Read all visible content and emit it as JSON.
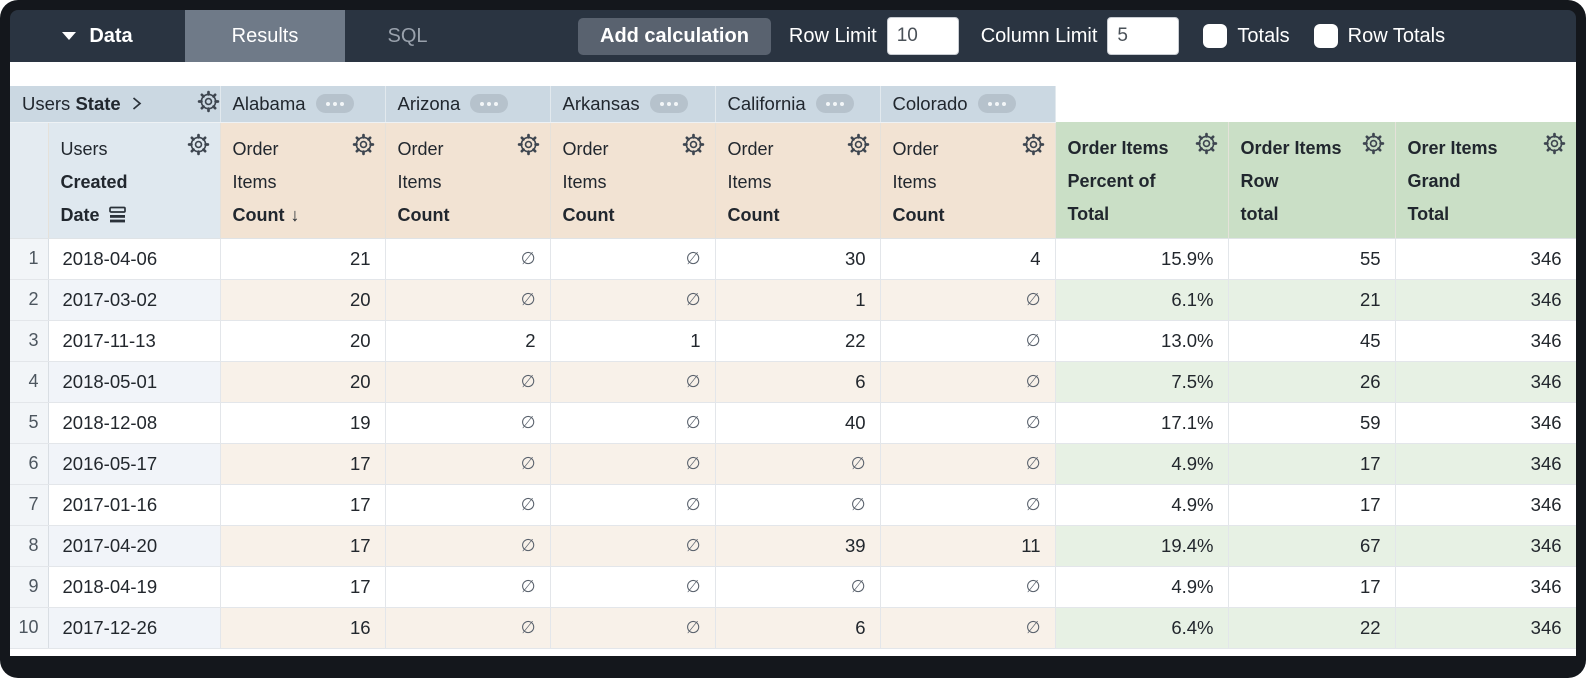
{
  "topbar": {
    "data_label": "Data",
    "results_label": "Results",
    "sql_label": "SQL",
    "add_calculation_label": "Add calculation",
    "row_limit_label": "Row Limit",
    "row_limit_value": "10",
    "column_limit_label": "Column Limit",
    "column_limit_value": "5",
    "totals_label": "Totals",
    "row_totals_label": "Row Totals"
  },
  "colors": {
    "topbar": "#2a3441",
    "state_header": "#cbd8e2",
    "dimension_header": "#dfe8ef",
    "measure_header": "#f2e3d3",
    "calc_header": "#cadfc6"
  },
  "pivot": {
    "dimension_regular": "Users",
    "dimension_bold": "State",
    "states": [
      "Alabama",
      "Arizona",
      "Arkansas",
      "California",
      "Colorado"
    ]
  },
  "row_dimension": {
    "line1": "Users",
    "line2": "Created",
    "line3": "Date"
  },
  "measure_columns": [
    {
      "lines": [
        "Order",
        "Items",
        "Count"
      ],
      "sorted": true,
      "sort_arrow": "↓"
    },
    {
      "lines": [
        "Order",
        "Items",
        "Count"
      ],
      "sorted": false,
      "sort_arrow": "↓"
    },
    {
      "lines": [
        "Order",
        "Items",
        "Count"
      ],
      "sorted": false,
      "sort_arrow": "↓"
    },
    {
      "lines": [
        "Order",
        "Items",
        "Count"
      ],
      "sorted": false,
      "sort_arrow": "↓"
    },
    {
      "lines": [
        "Order",
        "Items",
        "Count"
      ],
      "sorted": false,
      "sort_arrow": "↓"
    }
  ],
  "calc_columns": [
    {
      "lines": [
        "Order Items",
        "Percent of",
        "Total"
      ]
    },
    {
      "lines": [
        "Order Items",
        "Row",
        "total"
      ]
    },
    {
      "lines": [
        "Orer Items",
        "Grand",
        "Total"
      ]
    }
  ],
  "null_symbol": "∅",
  "rows": [
    {
      "n": "1",
      "date": "2018-04-06",
      "values": [
        "21",
        "∅",
        "∅",
        "30",
        "4"
      ],
      "percent": "15.9%",
      "row_total": "55",
      "grand_total": "346"
    },
    {
      "n": "2",
      "date": "2017-03-02",
      "values": [
        "20",
        "∅",
        "∅",
        "1",
        "∅"
      ],
      "percent": "6.1%",
      "row_total": "21",
      "grand_total": "346"
    },
    {
      "n": "3",
      "date": "2017-11-13",
      "values": [
        "20",
        "2",
        "1",
        "22",
        "∅"
      ],
      "percent": "13.0%",
      "row_total": "45",
      "grand_total": "346"
    },
    {
      "n": "4",
      "date": "2018-05-01",
      "values": [
        "20",
        "∅",
        "∅",
        "6",
        "∅"
      ],
      "percent": "7.5%",
      "row_total": "26",
      "grand_total": "346"
    },
    {
      "n": "5",
      "date": "2018-12-08",
      "values": [
        "19",
        "∅",
        "∅",
        "40",
        "∅"
      ],
      "percent": "17.1%",
      "row_total": "59",
      "grand_total": "346"
    },
    {
      "n": "6",
      "date": "2016-05-17",
      "values": [
        "17",
        "∅",
        "∅",
        "∅",
        "∅"
      ],
      "percent": "4.9%",
      "row_total": "17",
      "grand_total": "346"
    },
    {
      "n": "7",
      "date": "2017-01-16",
      "values": [
        "17",
        "∅",
        "∅",
        "∅",
        "∅"
      ],
      "percent": "4.9%",
      "row_total": "17",
      "grand_total": "346"
    },
    {
      "n": "8",
      "date": "2017-04-20",
      "values": [
        "17",
        "∅",
        "∅",
        "39",
        "11"
      ],
      "percent": "19.4%",
      "row_total": "67",
      "grand_total": "346"
    },
    {
      "n": "9",
      "date": "2018-04-19",
      "values": [
        "17",
        "∅",
        "∅",
        "∅",
        "∅"
      ],
      "percent": "4.9%",
      "row_total": "17",
      "grand_total": "346"
    },
    {
      "n": "10",
      "date": "2017-12-26",
      "values": [
        "16",
        "∅",
        "∅",
        "6",
        "∅"
      ],
      "percent": "6.4%",
      "row_total": "22",
      "grand_total": "346"
    }
  ]
}
